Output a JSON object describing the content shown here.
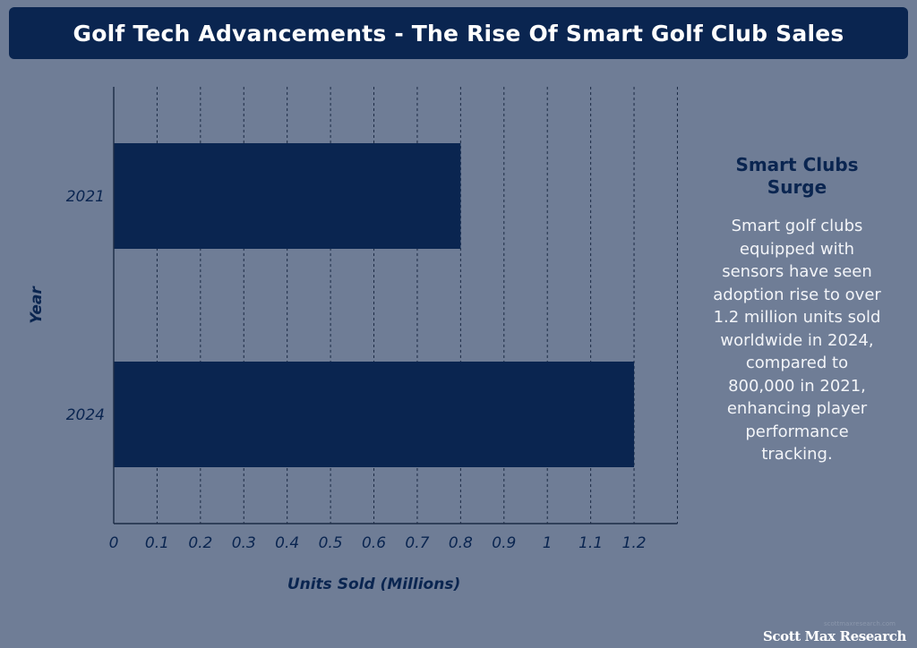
{
  "title": "Golf Tech Advancements - The Rise Of Smart Golf Club Sales",
  "chart_data": {
    "type": "bar",
    "orientation": "horizontal",
    "categories": [
      "2021",
      "2024"
    ],
    "values": [
      0.8,
      1.2
    ],
    "xlabel": "Units Sold (Millions)",
    "ylabel": "Year",
    "xlim": [
      0,
      1.3
    ],
    "xticks": [
      0,
      0.1,
      0.2,
      0.3,
      0.4,
      0.5,
      0.6,
      0.7,
      0.8,
      0.9,
      1,
      1.1,
      1.2
    ],
    "xtick_labels": [
      "0",
      "0.1",
      "0.2",
      "0.3",
      "0.4",
      "0.5",
      "0.6",
      "0.7",
      "0.8",
      "0.9",
      "1",
      "1.1",
      "1.2"
    ],
    "grid": "vertical dashed",
    "bar_color": "#0a2550"
  },
  "panel": {
    "heading_line1": "Smart Clubs",
    "heading_line2": "Surge",
    "body_lines": [
      "Smart golf clubs",
      "equipped with",
      "sensors have seen",
      "adoption rise to over",
      "1.2 million units sold",
      "worldwide in 2024,",
      "compared to",
      "800,000 in 2021,",
      "enhancing player",
      "performance",
      "tracking."
    ]
  },
  "credit_small": "scottmaxresearch.com",
  "credit": "Scott Max Research",
  "colors": {
    "background": "#6f7d96",
    "accent": "#0a2550",
    "grid": "#1c2b45",
    "panel_text": "#f2f4f8"
  }
}
